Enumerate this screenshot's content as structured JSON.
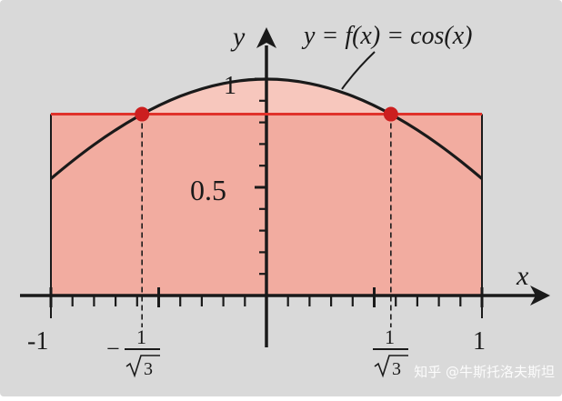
{
  "colors": {
    "panel": "#d9d9d9",
    "fill_rect": "#f2aca0",
    "curve_cap": "#f7c7bd",
    "axis": "#1a1a1a",
    "curve": "#1a1a1a",
    "chord": "#e0322a",
    "point": "#cc1f1f"
  },
  "labels": {
    "y_axis": "y",
    "x_axis": "x",
    "equation": "y = f(x) = cos(x)",
    "y_tick_1": "1",
    "y_tick_half": "0.5",
    "x_tick_neg1": "-1",
    "x_tick_pos1": "1",
    "x_node_minus": "−",
    "x_node_num": "1",
    "x_node_den": "3"
  },
  "chart_data": {
    "type": "line",
    "x": [
      -1,
      -0.8,
      -0.6,
      -0.4,
      -0.2,
      0,
      0.2,
      0.4,
      0.6,
      0.8,
      1
    ],
    "series": [
      {
        "values": [
          0.54,
          0.697,
          0.825,
          0.921,
          0.98,
          1.0,
          0.98,
          0.921,
          0.825,
          0.697,
          0.54
        ]
      }
    ],
    "points": [
      {
        "x": -0.57735,
        "y": 0.838
      },
      {
        "x": 0.57735,
        "y": 0.838
      }
    ],
    "chord_y": 0.838,
    "xlim": [
      -1,
      1
    ],
    "ylim": [
      0,
      1
    ],
    "grid": false
  },
  "watermark": "知乎 @牛斯托洛夫斯坦"
}
